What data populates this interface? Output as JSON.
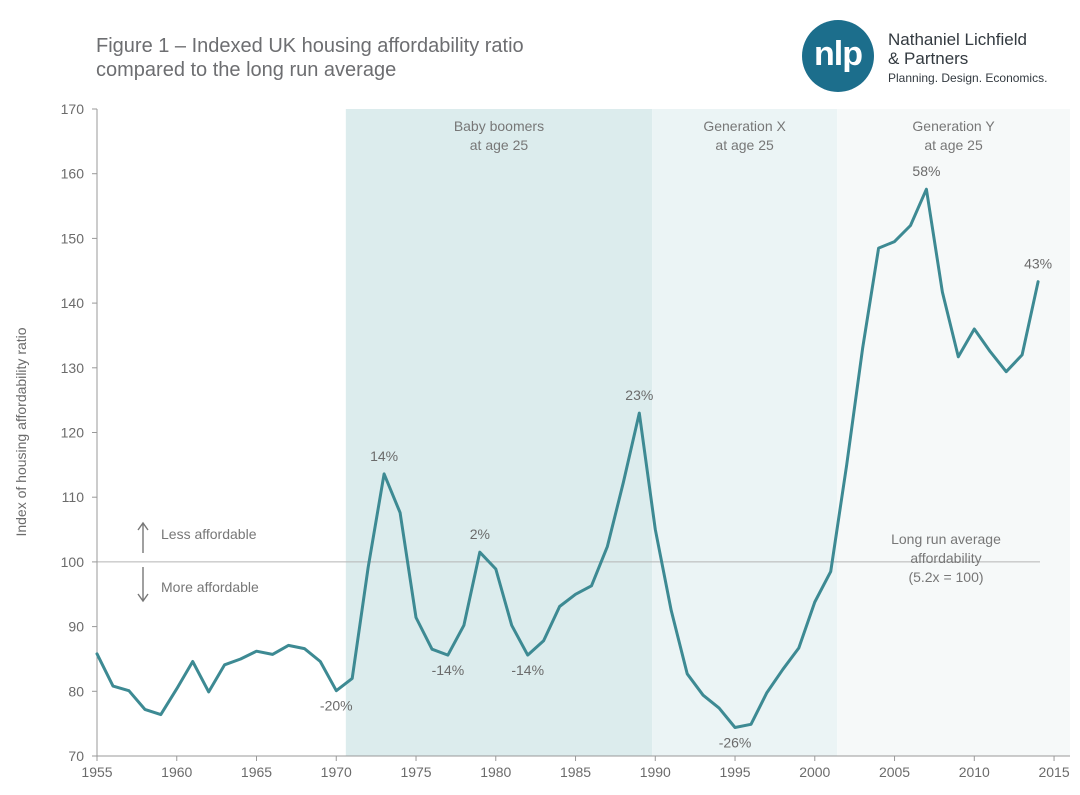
{
  "title_lines": [
    "Figure 1 – Indexed UK housing affordability ratio",
    "compared to the long run average"
  ],
  "logo": {
    "mark": "nlp",
    "name_lines": [
      "Nathaniel Lichfield",
      "& Partners"
    ],
    "tagline": "Planning. Design. Economics.",
    "color": "#1c6e8c"
  },
  "chart_data": {
    "type": "line",
    "ylabel": "Index of housing affordability ratio",
    "xlabel": "",
    "xlim": [
      1955,
      2016
    ],
    "ylim": [
      70,
      170
    ],
    "x_ticks": [
      1955,
      1960,
      1965,
      1970,
      1975,
      1980,
      1985,
      1990,
      1995,
      2000,
      2005,
      2010,
      2015
    ],
    "y_ticks": [
      70,
      80,
      90,
      100,
      110,
      120,
      130,
      140,
      150,
      160,
      170
    ],
    "grid": false,
    "line_color": "#3d8a93",
    "x": [
      1955,
      1956,
      1957,
      1958,
      1959,
      1960,
      1961,
      1962,
      1963,
      1964,
      1965,
      1966,
      1967,
      1968,
      1969,
      1970,
      1971,
      1972,
      1973,
      1974,
      1975,
      1976,
      1977,
      1978,
      1979,
      1980,
      1981,
      1982,
      1983,
      1984,
      1985,
      1986,
      1987,
      1988,
      1989,
      1990,
      1991,
      1992,
      1993,
      1994,
      1995,
      1996,
      1997,
      1998,
      1999,
      2000,
      2001,
      2002,
      2003,
      2004,
      2005,
      2006,
      2007,
      2008,
      2009,
      2010,
      2011,
      2012,
      2013,
      2014
    ],
    "values": [
      85.8,
      80.8,
      80.1,
      77.2,
      76.4,
      80.4,
      84.6,
      79.9,
      84.1,
      85.0,
      86.2,
      85.7,
      87.1,
      86.6,
      84.6,
      80.1,
      82.0,
      99.2,
      113.6,
      107.6,
      91.4,
      86.5,
      85.6,
      90.2,
      101.5,
      98.9,
      90.2,
      85.6,
      87.8,
      93.1,
      95.0,
      96.3,
      102.4,
      112.3,
      123.0,
      105.0,
      92.5,
      82.7,
      79.4,
      77.4,
      74.4,
      74.9,
      79.8,
      83.4,
      86.7,
      93.8,
      98.5,
      115.0,
      133.0,
      148.5,
      149.5,
      152.0,
      157.6,
      141.7,
      131.7,
      136.0,
      132.5,
      129.4,
      132.0,
      143.3
    ],
    "reference_line": {
      "y": 100,
      "label_lines": [
        "Long run average",
        "affordability",
        "(5.2x = 100)"
      ]
    },
    "arrows": {
      "up": "Less affordable",
      "down": "More affordable"
    },
    "eras": [
      {
        "label_lines": [
          "Baby boomers",
          "at age 25"
        ],
        "start": 1970.6,
        "end": 1989.8,
        "color": "#dceced"
      },
      {
        "label_lines": [
          "Generation X",
          "at age 25"
        ],
        "start": 1989.8,
        "end": 2001.4,
        "color": "#ebf4f5"
      },
      {
        "label_lines": [
          "Generation Y",
          "at age 25"
        ],
        "start": 2001.4,
        "end": 2016,
        "color": "#f6f9f9"
      }
    ],
    "point_labels": [
      {
        "year": 1970,
        "text": "-20%",
        "pos": "below"
      },
      {
        "year": 1973,
        "text": "14%",
        "pos": "above"
      },
      {
        "year": 1977,
        "text": "-14%",
        "pos": "below"
      },
      {
        "year": 1979,
        "text": "2%",
        "pos": "above"
      },
      {
        "year": 1982,
        "text": "-14%",
        "pos": "below"
      },
      {
        "year": 1989,
        "text": "23%",
        "pos": "above"
      },
      {
        "year": 1995,
        "text": "-26%",
        "pos": "below"
      },
      {
        "year": 2007,
        "text": "58%",
        "pos": "above"
      },
      {
        "year": 2014,
        "text": "43%",
        "pos": "above"
      }
    ]
  }
}
